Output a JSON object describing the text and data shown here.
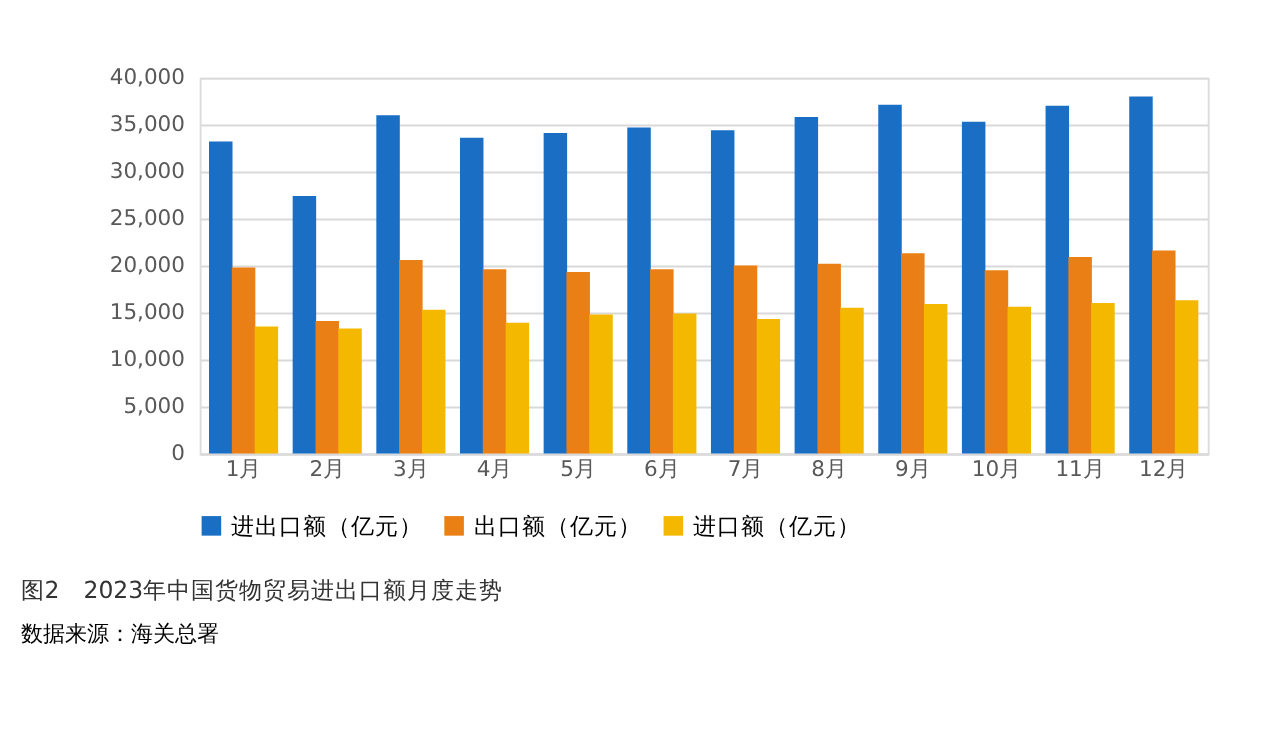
{
  "chart_data": {
    "type": "bar",
    "title": "图2　2023年中国货物贸易进出口额月度走势",
    "annotations": [
      "数据来源：海关总署"
    ],
    "categories": [
      "1月",
      "2月",
      "3月",
      "4月",
      "5月",
      "6月",
      "7月",
      "8月",
      "9月",
      "10月",
      "11月",
      "12月"
    ],
    "series": [
      {
        "name": "进出口额（亿元）",
        "color": "#1a6fc4",
        "values": [
          33200,
          27400,
          36000,
          33600,
          34100,
          34700,
          34400,
          35800,
          37100,
          35300,
          37000,
          38000
        ]
      },
      {
        "name": "出口额（亿元）",
        "color": "#ea7f16",
        "values": [
          19800,
          14100,
          20600,
          19600,
          19300,
          19600,
          20000,
          20200,
          21300,
          19500,
          20900,
          21600
        ]
      },
      {
        "name": "进口额（亿元）",
        "color": "#f5b800",
        "values": [
          13500,
          13300,
          15300,
          13900,
          14800,
          14900,
          14300,
          15500,
          15900,
          15600,
          16000,
          16300
        ]
      }
    ],
    "ylim": [
      0,
      40000
    ],
    "yticks": [
      {
        "value": 0,
        "label": "0"
      },
      {
        "value": 5000,
        "label": "5,000"
      },
      {
        "value": 10000,
        "label": "10,000"
      },
      {
        "value": 15000,
        "label": "15,000"
      },
      {
        "value": 20000,
        "label": "20,000"
      },
      {
        "value": 25000,
        "label": "25,000"
      },
      {
        "value": 30000,
        "label": "30,000"
      },
      {
        "value": 35000,
        "label": "35,000"
      },
      {
        "value": 40000,
        "label": "40,000"
      }
    ],
    "grid": "y",
    "legend": "bottom"
  }
}
